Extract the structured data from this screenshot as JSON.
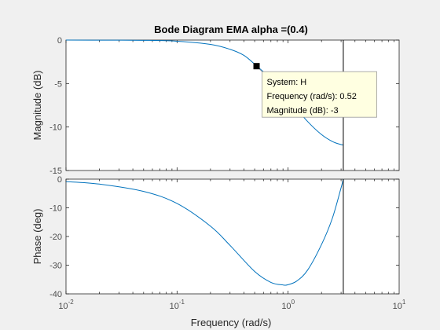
{
  "chart_data": {
    "type": "line",
    "title": "Bode Diagram EMA alpha =(0.4)",
    "xlabel": "Frequency  (rad/s)",
    "xscale": "log",
    "xlim": [
      0.01,
      10
    ],
    "x_ticks": [
      {
        "base": "10",
        "exp": "-2"
      },
      {
        "base": "10",
        "exp": "-1"
      },
      {
        "base": "10",
        "exp": "0"
      },
      {
        "base": "10",
        "exp": "1"
      }
    ],
    "nyquist_frequency": 3.1416,
    "panels": [
      {
        "name": "magnitude",
        "ylabel": "Magnitude (dB)",
        "ylim": [
          -15,
          0
        ],
        "y_ticks": [
          "0",
          "-5",
          "-10",
          "-15"
        ],
        "series": [
          {
            "x": [
              0.01,
              0.02,
              0.05,
              0.1,
              0.2,
              0.3,
              0.4,
              0.52,
              0.7,
              1.0,
              1.5,
              2.0,
              2.5,
              3.0,
              3.1416
            ],
            "y": [
              0.0,
              -0.01,
              -0.03,
              -0.13,
              -0.5,
              -1.06,
              -1.76,
              -2.97,
              -4.47,
              -6.8,
              -9.37,
              -10.87,
              -11.66,
              -12.02,
              -12.04
            ]
          }
        ],
        "datatip": {
          "point": [
            0.52,
            -3
          ],
          "lines": [
            "System: H",
            "Frequency (rad/s): 0.52",
            "Magnitude (dB): -3"
          ]
        }
      },
      {
        "name": "phase",
        "ylabel": "Phase (deg)",
        "ylim": [
          -40,
          0
        ],
        "y_ticks": [
          "0",
          "-10",
          "-20",
          "-30",
          "-40"
        ],
        "series": [
          {
            "x": [
              0.01,
              0.02,
              0.05,
              0.1,
              0.2,
              0.3,
              0.5,
              0.7,
              0.9,
              1.0,
              1.2,
              1.5,
              2.0,
              2.5,
              3.0,
              3.1416
            ],
            "y": [
              -0.86,
              -1.72,
              -4.28,
              -8.49,
              -16.4,
              -23.1,
              -32.2,
              -36.0,
              -36.9,
              -36.8,
              -35.5,
              -31.7,
              -22.8,
              -13.7,
              -3.0,
              0.0
            ]
          }
        ]
      }
    ],
    "grid": false,
    "colors": {
      "line": "#0072bd",
      "background": "#f0f0f0",
      "axes": "#ffffff",
      "datatip_bg": "#ffffe1"
    }
  }
}
